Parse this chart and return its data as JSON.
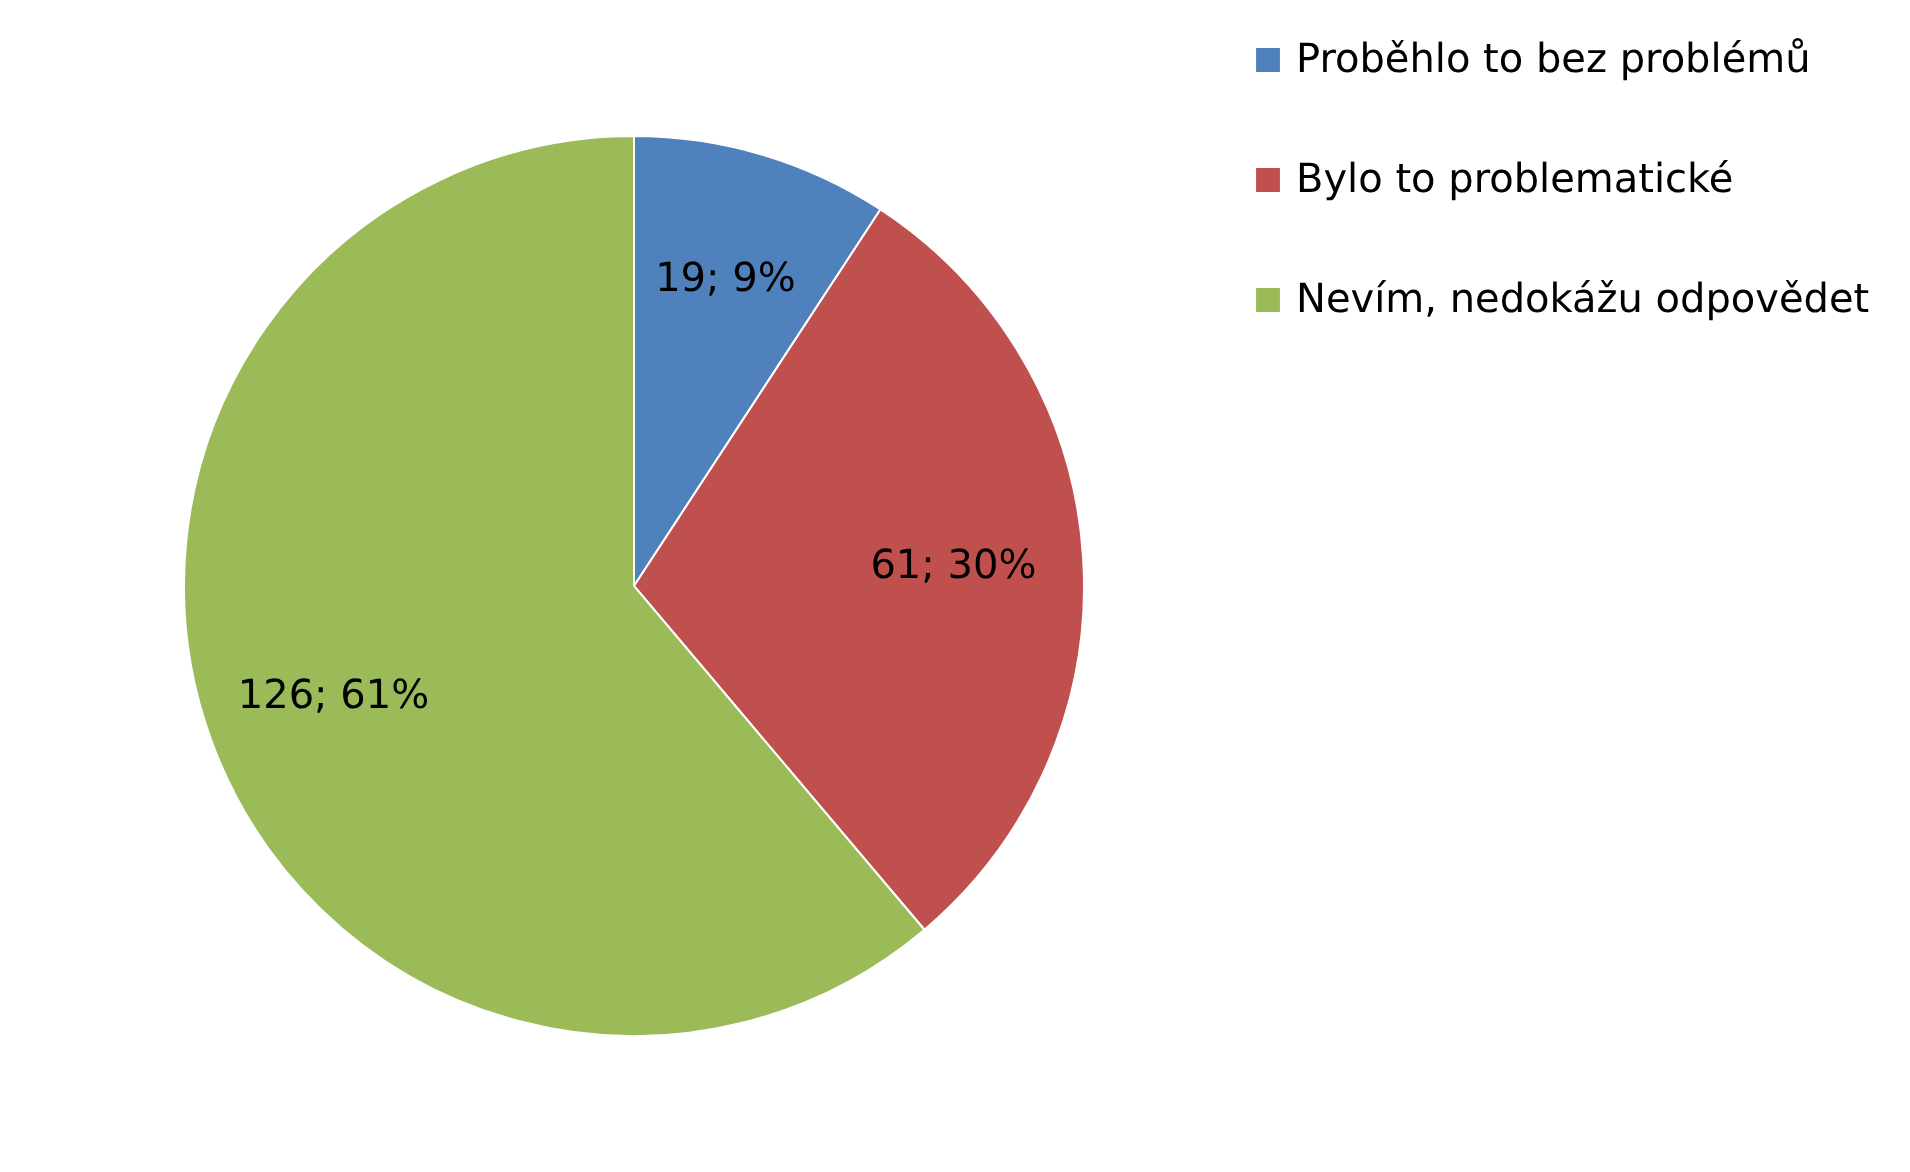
{
  "chart_data": {
    "type": "pie",
    "categories": [
      "Proběhlo to bez problémů",
      "Bylo to problematické",
      "Nevím, nedokážu odpovědet"
    ],
    "values": [
      19,
      61,
      126
    ],
    "colors": [
      "#4f81bd",
      "#c0504d",
      "#9bbb59"
    ],
    "value_labels": [
      "19; 9%",
      "61; 30%",
      "126; 61%"
    ],
    "legend": "right"
  }
}
